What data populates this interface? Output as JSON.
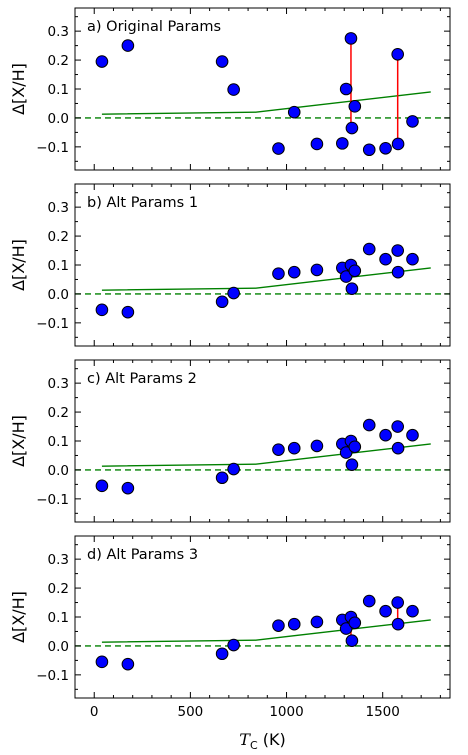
{
  "chart_data": [
    {
      "type": "scatter",
      "title": "a) Original Params",
      "ylabel": "Δ[X/H]",
      "xlim": [
        -100,
        1850
      ],
      "ylim": [
        -0.18,
        0.38
      ],
      "yticks": [
        "0.3",
        "0.2",
        "0.1",
        "0.0",
        "−0.1"
      ],
      "points": [
        {
          "x": 40,
          "y": 0.195
        },
        {
          "x": 175,
          "y": 0.25
        },
        {
          "x": 665,
          "y": 0.195
        },
        {
          "x": 725,
          "y": 0.098
        },
        {
          "x": 958,
          "y": -0.106
        },
        {
          "x": 1040,
          "y": 0.02
        },
        {
          "x": 1158,
          "y": -0.09
        },
        {
          "x": 1290,
          "y": -0.088
        },
        {
          "x": 1310,
          "y": 0.1
        },
        {
          "x": 1335,
          "y": 0.275
        },
        {
          "x": 1340,
          "y": -0.035
        },
        {
          "x": 1355,
          "y": 0.04
        },
        {
          "x": 1430,
          "y": -0.11
        },
        {
          "x": 1515,
          "y": -0.105
        },
        {
          "x": 1578,
          "y": 0.22
        },
        {
          "x": 1580,
          "y": -0.09
        },
        {
          "x": 1655,
          "y": -0.012
        }
      ],
      "segments": [
        {
          "x": 1335,
          "y1": 0.275,
          "y2": -0.035
        },
        {
          "x": 1578,
          "y1": 0.22,
          "y2": -0.09
        }
      ],
      "trend_line": {
        "x": [
          40,
          840,
          1750
        ],
        "y": [
          0.013,
          0.02,
          0.09
        ]
      },
      "zero_line": 0
    },
    {
      "type": "scatter",
      "title": "b) Alt Params 1",
      "ylabel": "Δ[X/H]",
      "xlim": [
        -100,
        1850
      ],
      "ylim": [
        -0.18,
        0.38
      ],
      "yticks": [
        "0.3",
        "0.2",
        "0.1",
        "0.0",
        "−0.1"
      ],
      "points": [
        {
          "x": 40,
          "y": -0.055
        },
        {
          "x": 175,
          "y": -0.063
        },
        {
          "x": 665,
          "y": -0.027
        },
        {
          "x": 725,
          "y": 0.003
        },
        {
          "x": 958,
          "y": 0.07
        },
        {
          "x": 1040,
          "y": 0.075
        },
        {
          "x": 1158,
          "y": 0.083
        },
        {
          "x": 1290,
          "y": 0.09
        },
        {
          "x": 1310,
          "y": 0.06
        },
        {
          "x": 1335,
          "y": 0.1
        },
        {
          "x": 1340,
          "y": 0.018
        },
        {
          "x": 1355,
          "y": 0.08
        },
        {
          "x": 1430,
          "y": 0.155
        },
        {
          "x": 1515,
          "y": 0.12
        },
        {
          "x": 1578,
          "y": 0.15
        },
        {
          "x": 1580,
          "y": 0.075
        },
        {
          "x": 1655,
          "y": 0.12
        }
      ],
      "segments": [],
      "trend_line": {
        "x": [
          40,
          840,
          1750
        ],
        "y": [
          0.013,
          0.02,
          0.09
        ]
      },
      "zero_line": 0
    },
    {
      "type": "scatter",
      "title": "c) Alt Params 2",
      "ylabel": "Δ[X/H]",
      "xlim": [
        -100,
        1850
      ],
      "ylim": [
        -0.18,
        0.38
      ],
      "yticks": [
        "0.3",
        "0.2",
        "0.1",
        "0.0",
        "−0.1"
      ],
      "points": [
        {
          "x": 40,
          "y": -0.055
        },
        {
          "x": 175,
          "y": -0.063
        },
        {
          "x": 665,
          "y": -0.027
        },
        {
          "x": 725,
          "y": 0.003
        },
        {
          "x": 958,
          "y": 0.07
        },
        {
          "x": 1040,
          "y": 0.075
        },
        {
          "x": 1158,
          "y": 0.083
        },
        {
          "x": 1290,
          "y": 0.09
        },
        {
          "x": 1310,
          "y": 0.06
        },
        {
          "x": 1335,
          "y": 0.1
        },
        {
          "x": 1340,
          "y": 0.018
        },
        {
          "x": 1355,
          "y": 0.08
        },
        {
          "x": 1430,
          "y": 0.155
        },
        {
          "x": 1515,
          "y": 0.12
        },
        {
          "x": 1578,
          "y": 0.15
        },
        {
          "x": 1580,
          "y": 0.075
        },
        {
          "x": 1655,
          "y": 0.12
        }
      ],
      "segments": [],
      "trend_line": {
        "x": [
          40,
          840,
          1750
        ],
        "y": [
          0.013,
          0.02,
          0.09
        ]
      },
      "zero_line": 0
    },
    {
      "type": "scatter",
      "title": "d) Alt Params 3",
      "ylabel": "Δ[X/H]",
      "xlabel": "T_C (K)",
      "xlim": [
        -100,
        1850
      ],
      "ylim": [
        -0.18,
        0.38
      ],
      "yticks": [
        "0.3",
        "0.2",
        "0.1",
        "0.0",
        "−0.1"
      ],
      "xticks": [
        0,
        500,
        1000,
        1500
      ],
      "points": [
        {
          "x": 40,
          "y": -0.055
        },
        {
          "x": 175,
          "y": -0.063
        },
        {
          "x": 665,
          "y": -0.027
        },
        {
          "x": 725,
          "y": 0.003
        },
        {
          "x": 958,
          "y": 0.07
        },
        {
          "x": 1040,
          "y": 0.075
        },
        {
          "x": 1158,
          "y": 0.083
        },
        {
          "x": 1290,
          "y": 0.09
        },
        {
          "x": 1310,
          "y": 0.06
        },
        {
          "x": 1335,
          "y": 0.1
        },
        {
          "x": 1340,
          "y": 0.018
        },
        {
          "x": 1355,
          "y": 0.08
        },
        {
          "x": 1430,
          "y": 0.155
        },
        {
          "x": 1515,
          "y": 0.12
        },
        {
          "x": 1578,
          "y": 0.15
        },
        {
          "x": 1580,
          "y": 0.075
        },
        {
          "x": 1655,
          "y": 0.12
        }
      ],
      "segments": [
        {
          "x": 1335,
          "y1": 0.1,
          "y2": 0.018
        },
        {
          "x": 1578,
          "y1": 0.15,
          "y2": 0.075
        }
      ],
      "trend_line": {
        "x": [
          40,
          840,
          1750
        ],
        "y": [
          0.013,
          0.02,
          0.09
        ]
      },
      "zero_line": 0
    }
  ],
  "xaxis": {
    "label_main": "T",
    "label_sub": "C",
    "label_unit": " (K)"
  },
  "colors": {
    "point_fill": "#0000ff",
    "point_edge": "#000000",
    "segment": "#ff0000",
    "trend": "#008000",
    "zero": "#008000"
  }
}
